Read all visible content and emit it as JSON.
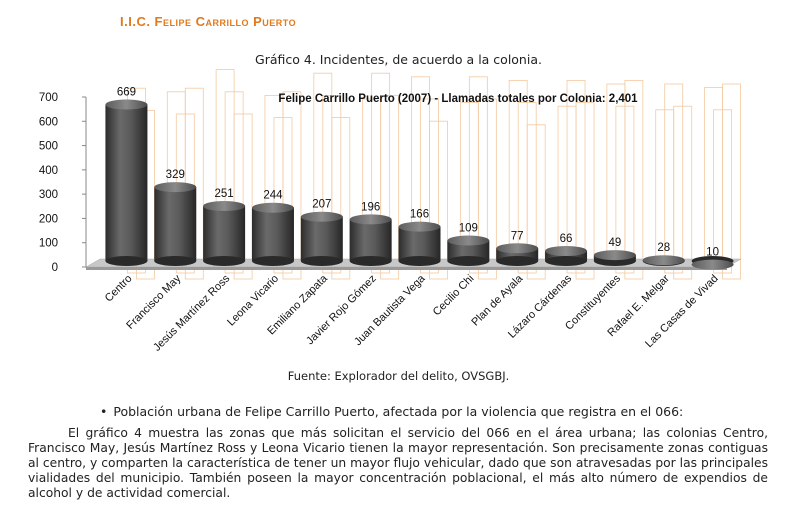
{
  "document": {
    "section_heading": "I.I.C. Felipe Carrillo Puerto",
    "figure_caption": "Gráfico 4. Incidentes, de acuerdo a la colonia.",
    "source": "Fuente: Explorador del delito, OVSGBJ.",
    "bullet": "Población urbana de Felipe Carrillo Puerto, afectada por la violencia que registra en el 066:",
    "paragraph": "El gráfico 4 muestra las zonas que más solicitan el servicio del 066 en el área urbana; las colonias Centro, Francisco May, Jesús Martínez Ross y Leona Vicario tienen la mayor representación. Son precisamente zonas contiguas al centro, y comparten la característica de tener un mayor flujo vehicular, dado que son atravesadas por las principales vialidades del municipio. También poseen la mayor concentración poblacional, el más alto número de expendios de alcohol y de actividad comercial."
  },
  "chart_data": {
    "type": "bar",
    "title": "Felipe Carrillo Puerto (2007) - Llamadas totales por Colonia: 2,401",
    "categories": [
      "Centro",
      "Francisco May",
      "Jesús Martínez Ross",
      "Leona Vicario",
      "Emiliano Zapata",
      "Javier Rojo Gómez",
      "Juan Bautista Vega",
      "Cecilio Chi",
      "Plan de Ayala",
      "Lázaro Cárdenas",
      "Constituyentes",
      "Rafael E. Melgar",
      "Las Casas de Vivad"
    ],
    "values": [
      669,
      329,
      251,
      244,
      207,
      196,
      166,
      109,
      77,
      66,
      49,
      28,
      10
    ],
    "yticks": [
      0,
      100,
      200,
      300,
      400,
      500,
      600,
      700
    ],
    "ylim": [
      0,
      700
    ],
    "bar_color": "#4a4a4a",
    "faint_outline_color": "#f3c9a0"
  }
}
